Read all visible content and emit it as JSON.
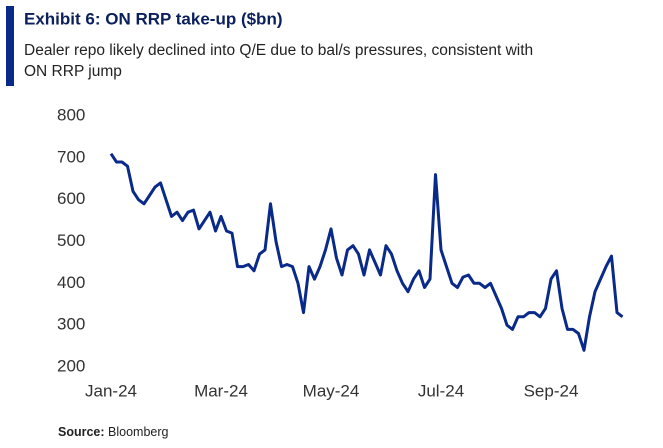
{
  "chart_data": {
    "type": "line",
    "title": "Exhibit 6: ON RRP take-up ($bn)",
    "subtitle_lines": [
      "Dealer repo likely declined into Q/E due to bal/s pressures, consistent with",
      "ON RRP jump"
    ],
    "source_label": "Source:",
    "source": "Bloomberg",
    "color": "#0a2a8a",
    "ylim": [
      200,
      800
    ],
    "yticks": [
      200,
      300,
      400,
      500,
      600,
      700,
      800
    ],
    "grid": false,
    "categories": [
      "Jan-24",
      null,
      null,
      null,
      null,
      null,
      null,
      null,
      null,
      null,
      null,
      null,
      null,
      null,
      null,
      null,
      null,
      null,
      null,
      null,
      "Mar-24",
      null,
      null,
      null,
      null,
      null,
      null,
      null,
      null,
      null,
      null,
      null,
      null,
      null,
      null,
      null,
      null,
      null,
      null,
      null,
      "May-24",
      null,
      null,
      null,
      null,
      null,
      null,
      null,
      null,
      null,
      null,
      null,
      null,
      null,
      null,
      null,
      null,
      null,
      null,
      null,
      "Jul-24",
      null,
      null,
      null,
      null,
      null,
      null,
      null,
      null,
      null,
      null,
      null,
      null,
      null,
      null,
      null,
      null,
      null,
      null,
      null,
      "Sep-24",
      null,
      null,
      null,
      null,
      null,
      null,
      null,
      null,
      null,
      null,
      null,
      null,
      null
    ],
    "values": [
      710,
      690,
      690,
      680,
      620,
      600,
      590,
      610,
      630,
      640,
      600,
      560,
      570,
      550,
      570,
      575,
      530,
      550,
      570,
      525,
      560,
      525,
      520,
      440,
      440,
      445,
      430,
      470,
      480,
      590,
      500,
      440,
      445,
      440,
      400,
      330,
      440,
      410,
      440,
      480,
      530,
      460,
      420,
      480,
      490,
      470,
      420,
      480,
      450,
      420,
      490,
      470,
      430,
      400,
      380,
      410,
      430,
      390,
      410,
      660,
      480,
      440,
      400,
      390,
      415,
      420,
      400,
      400,
      390,
      400,
      370,
      340,
      300,
      290,
      320,
      320,
      330,
      330,
      320,
      340,
      410,
      430,
      340,
      290,
      290,
      280,
      240,
      320,
      380,
      410,
      440,
      465,
      330,
      320
    ]
  }
}
